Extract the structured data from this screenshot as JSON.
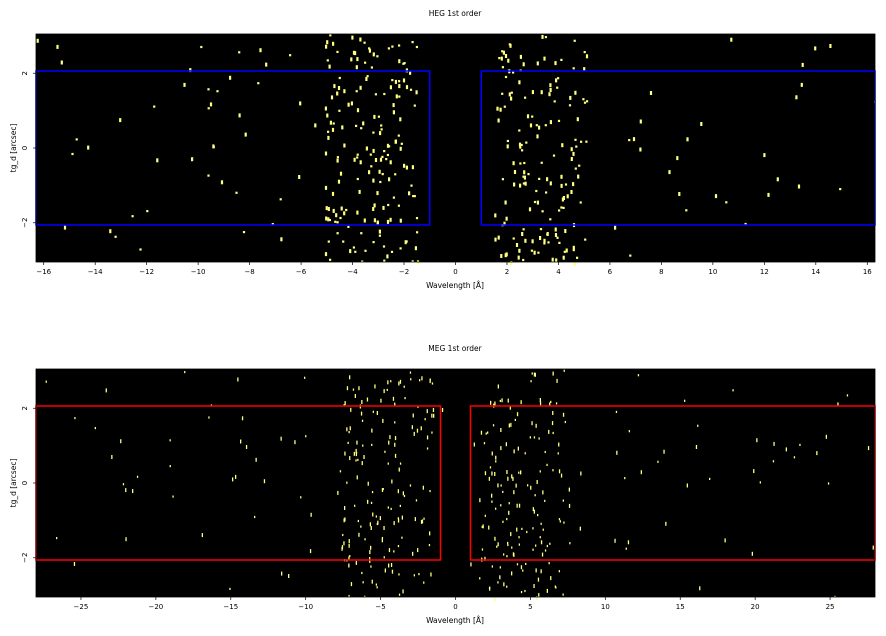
{
  "chart_data": [
    {
      "type": "heatmap",
      "title": "HEG 1st order",
      "xlabel": "Wavelength [Å]",
      "ylabel": "tg_d [arcsec]",
      "xlim": [
        -16.3,
        16.3
      ],
      "ylim": [
        -3.05,
        3.05
      ],
      "xticks": [
        -16,
        -14,
        -12,
        -10,
        -8,
        -6,
        -4,
        -2,
        0,
        2,
        4,
        6,
        8,
        10,
        12,
        14,
        16
      ],
      "yticks": [
        -2,
        0,
        2
      ],
      "background_color": "#000000",
      "event_color": "#ffff80",
      "region_color": "#0000ff",
      "regions": [
        {
          "x": [
            -16.3,
            -1.0
          ],
          "y": [
            -2.06,
            2.06
          ]
        },
        {
          "x": [
            1.0,
            16.3
          ],
          "y": [
            -2.06,
            2.06
          ]
        }
      ]
    },
    {
      "type": "heatmap",
      "title": "MEG 1st order",
      "xlabel": "Wavelength [Å]",
      "ylabel": "tg_d [arcsec]",
      "xlim": [
        -28,
        28
      ],
      "ylim": [
        -3.05,
        3.05
      ],
      "xticks": [
        -25,
        -20,
        -15,
        -10,
        -5,
        0,
        5,
        10,
        15,
        20,
        25
      ],
      "yticks": [
        -2,
        0,
        2
      ],
      "background_color": "#000000",
      "event_color": "#ffff80",
      "region_color": "#ff0000",
      "regions": [
        {
          "x": [
            -28,
            -1.0
          ],
          "y": [
            -2.06,
            2.06
          ]
        },
        {
          "x": [
            1.0,
            28
          ],
          "y": [
            -2.06,
            2.06
          ]
        }
      ]
    }
  ]
}
